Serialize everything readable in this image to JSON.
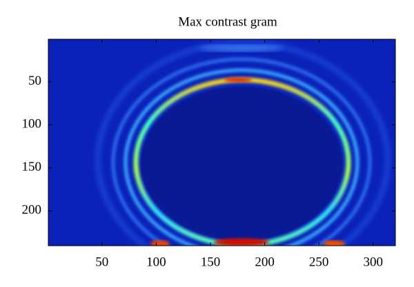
{
  "chart_data": {
    "type": "image",
    "title": "Max contrast gram",
    "xlim": [
      0.5,
      320.5
    ],
    "xticks": [
      50,
      100,
      150,
      200,
      250,
      300
    ],
    "ylim": [
      0.5,
      240.5
    ],
    "yticks": [
      50,
      100,
      150,
      200
    ],
    "ydir": "reverse"
  }
}
